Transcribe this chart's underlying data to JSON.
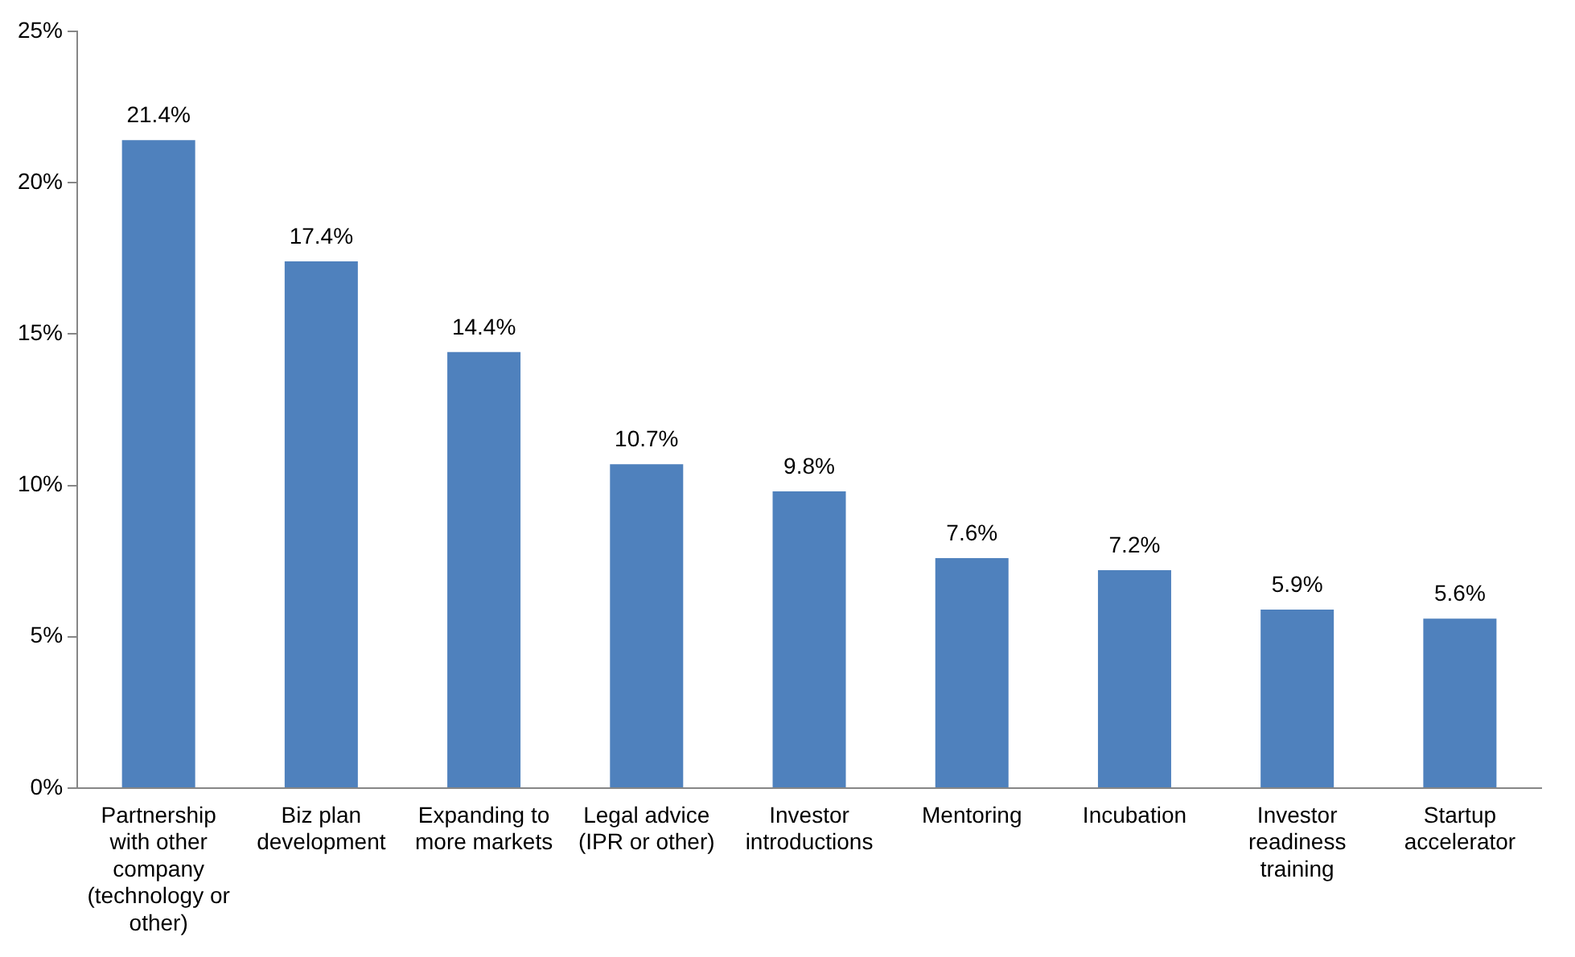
{
  "chart_data": {
    "type": "bar",
    "categories": [
      "Partnership with other company (technology or other)",
      "Biz plan development",
      "Expanding to more markets",
      "Legal advice (IPR or other)",
      "Investor introductions",
      "Mentoring",
      "Incubation",
      "Investor readiness training",
      "Startup accelerator"
    ],
    "values": [
      21.4,
      17.4,
      14.4,
      10.7,
      9.8,
      7.6,
      7.2,
      5.9,
      5.6
    ],
    "value_labels": [
      "21.4%",
      "17.4%",
      "14.4%",
      "10.7%",
      "9.8%",
      "7.6%",
      "7.2%",
      "5.9%",
      "5.6%"
    ],
    "color": "#4f81bd",
    "ylim": [
      0,
      25
    ],
    "yticks": [
      {
        "value": 0,
        "label": "0%"
      },
      {
        "value": 5,
        "label": "5%"
      },
      {
        "value": 10,
        "label": "10%"
      },
      {
        "value": 15,
        "label": "15%"
      },
      {
        "value": 20,
        "label": "20%"
      },
      {
        "value": 25,
        "label": "25%"
      }
    ],
    "grid": false,
    "legend": false
  }
}
